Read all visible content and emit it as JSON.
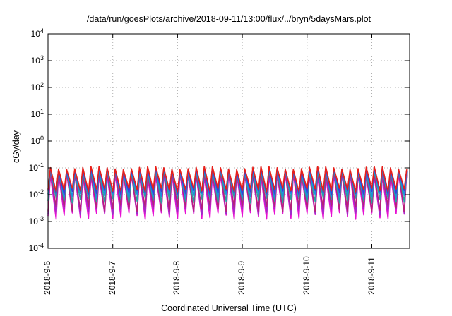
{
  "chart_data": {
    "type": "line",
    "title": "/data/run/goesPlots/archive/2018-09-11/13:00/flux/../bryn/5daysMars.plot",
    "xlabel": "Coordinated Universal Time (UTC)",
    "ylabel": "cGy/day",
    "yscale": "log",
    "ylim": [
      0.0001,
      10000
    ],
    "xlim": [
      "2018-09-06",
      "2018-09-11T14:00"
    ],
    "grid": true,
    "y_ticks": [
      {
        "base": "10",
        "exp": "-4"
      },
      {
        "base": "10",
        "exp": "-3"
      },
      {
        "base": "10",
        "exp": "-2"
      },
      {
        "base": "10",
        "exp": "-1"
      },
      {
        "base": "10",
        "exp": "0"
      },
      {
        "base": "10",
        "exp": "1"
      },
      {
        "base": "10",
        "exp": "2"
      },
      {
        "base": "10",
        "exp": "3"
      },
      {
        "base": "10",
        "exp": "4"
      }
    ],
    "x_ticks": [
      "2018-9-6",
      "2018-9-7",
      "2018-9-8",
      "2018-9-9",
      "2018-9-10",
      "2018-9-11"
    ],
    "oscillation_period_hours": 3,
    "series": [
      {
        "color": "#e60fd2",
        "peak": 0.055,
        "trough": 0.0016
      },
      {
        "color": "#9a30c8",
        "peak": 0.065,
        "trough": 0.0023
      },
      {
        "color": "#b8207a",
        "peak": 0.07,
        "trough": 0.003
      },
      {
        "color": "#2aa0a0",
        "peak": 0.08,
        "trough": 0.006
      },
      {
        "color": "#1a8fe0",
        "peak": 0.085,
        "trough": 0.009
      },
      {
        "color": "#3c3cd8",
        "peak": 0.09,
        "trough": 0.012
      },
      {
        "color": "#e8201a",
        "peak": 0.1,
        "trough": 0.015
      }
    ]
  }
}
